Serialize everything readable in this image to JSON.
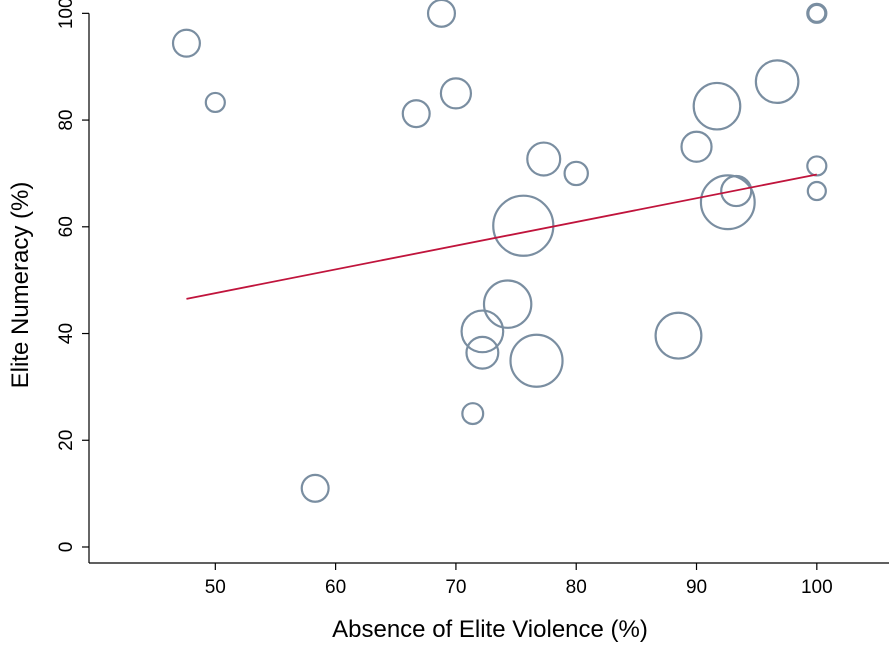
{
  "chart_data": {
    "type": "scatter",
    "title": "",
    "xlabel": "Absence of Elite Violence (%)",
    "ylabel": "Elite Numeracy (%)",
    "xlim": [
      39.5,
      106
    ],
    "ylim": [
      -3,
      101
    ],
    "xticks": [
      50,
      60,
      70,
      80,
      90,
      100
    ],
    "yticks": [
      0,
      20,
      40,
      60,
      80,
      100
    ],
    "grid": false,
    "legend": "none",
    "series": [
      {
        "points": [
          {
            "x": 47.6,
            "y": 94.4,
            "size": 2.0
          },
          {
            "x": 50.0,
            "y": 83.3,
            "size": 1.0
          },
          {
            "x": 58.3,
            "y": 11.0,
            "size": 2.0
          },
          {
            "x": 66.7,
            "y": 81.2,
            "size": 2.0
          },
          {
            "x": 68.8,
            "y": 100.0,
            "size": 2.0
          },
          {
            "x": 70.0,
            "y": 85.0,
            "size": 2.5
          },
          {
            "x": 71.4,
            "y": 25.0,
            "size": 1.2
          },
          {
            "x": 72.2,
            "y": 40.4,
            "size": 4.8
          },
          {
            "x": 72.2,
            "y": 36.4,
            "size": 2.8
          },
          {
            "x": 74.3,
            "y": 45.5,
            "size": 6.2
          },
          {
            "x": 75.6,
            "y": 60.2,
            "size": 10.0
          },
          {
            "x": 76.7,
            "y": 34.9,
            "size": 7.5
          },
          {
            "x": 77.3,
            "y": 72.7,
            "size": 3.0
          },
          {
            "x": 80.0,
            "y": 70.0,
            "size": 1.5
          },
          {
            "x": 88.5,
            "y": 39.6,
            "size": 5.8
          },
          {
            "x": 90.0,
            "y": 75.0,
            "size": 2.5
          },
          {
            "x": 91.7,
            "y": 82.6,
            "size": 6.0
          },
          {
            "x": 92.6,
            "y": 64.6,
            "size": 8.0
          },
          {
            "x": 93.3,
            "y": 66.7,
            "size": 2.5
          },
          {
            "x": 96.7,
            "y": 87.2,
            "size": 5.0
          },
          {
            "x": 100.0,
            "y": 100.0,
            "size": 1.0
          },
          {
            "x": 100.0,
            "y": 100.0,
            "size": 0.8
          },
          {
            "x": 100.0,
            "y": 71.4,
            "size": 1.0
          },
          {
            "x": 100.0,
            "y": 66.7,
            "size": 0.9
          }
        ]
      }
    ],
    "fit_line": {
      "x": [
        47.6,
        100.0
      ],
      "y": [
        46.5,
        69.8
      ]
    },
    "colors": {
      "bubble": "#7a8ea1",
      "fit_line": "#c0143c",
      "axis": "#000000"
    }
  }
}
